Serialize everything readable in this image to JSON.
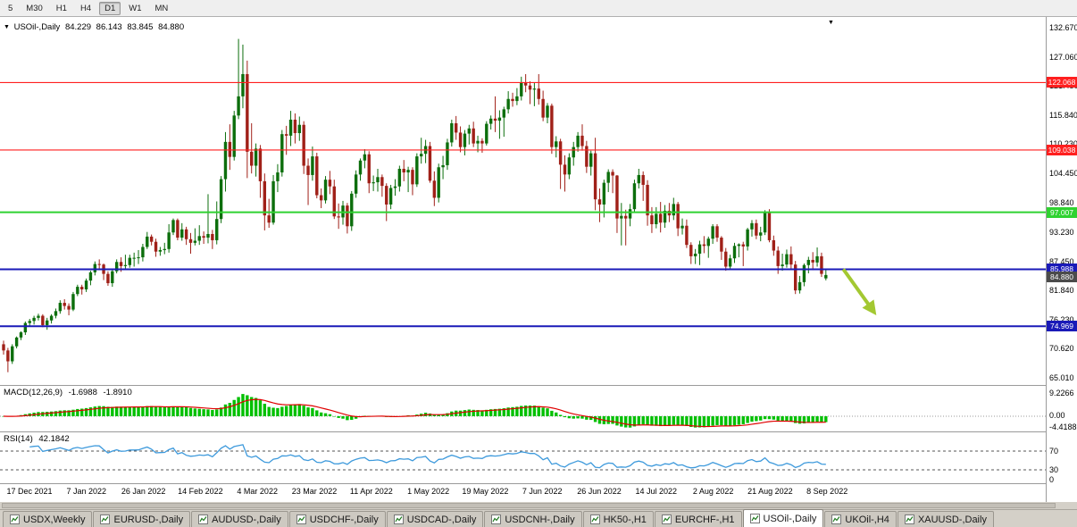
{
  "icons": {
    "dropdown": "▼",
    "shift_marker": "▼"
  },
  "colors": {
    "bull": "#0c6e0c",
    "bear": "#a02018",
    "macd_hist": "#00c000",
    "macd_signal": "#e00000",
    "rsi_line": "#3e9adc",
    "arrow": "#a3c832"
  },
  "toolbar": {
    "periods": [
      {
        "label": "5"
      },
      {
        "label": "M30"
      },
      {
        "label": "H1"
      },
      {
        "label": "H4"
      },
      {
        "label": "D1",
        "active": true
      },
      {
        "label": "W1"
      },
      {
        "label": "MN"
      }
    ]
  },
  "chart": {
    "header": {
      "symbol": "USOil-,Daily",
      "open": "84.229",
      "high": "86.143",
      "low": "83.845",
      "close": "84.880"
    }
  },
  "indicators": {
    "macd": {
      "name": "MACD(12,26,9)",
      "value_main": "-1.6988",
      "value_signal": "-1.8910",
      "fast": 12,
      "slow": 26,
      "signal": 9,
      "axis_labels": [
        "9.2266",
        "0.00",
        "-4.4188"
      ]
    },
    "rsi": {
      "name": "RSI(14)",
      "value": "42.1842",
      "period": 14,
      "levels": [
        70,
        30
      ],
      "axis_labels": [
        "70",
        "30",
        "0"
      ]
    }
  },
  "tabs": [
    {
      "label": "USDX,Weekly"
    },
    {
      "label": "EURUSD-,Daily"
    },
    {
      "label": "AUDUSD-,Daily"
    },
    {
      "label": "USDCHF-,Daily"
    },
    {
      "label": "USDCAD-,Daily"
    },
    {
      "label": "USDCNH-,Daily"
    },
    {
      "label": "HK50-,H1"
    },
    {
      "label": "EURCHF-,H1"
    },
    {
      "label": "USOil-,Daily",
      "active": true
    },
    {
      "label": "UKOil-,H4"
    },
    {
      "label": "XAUUSD-,Daily"
    }
  ],
  "chart_data": {
    "type": "candlestick",
    "title": "USOil-,Daily",
    "symbol": "USOil-",
    "timeframe": "Daily",
    "ylim": [
      65.01,
      132.67
    ],
    "y_tick_labels": [
      "132.670",
      "127.060",
      "121.450",
      "115.840",
      "110.230",
      "104.450",
      "98.840",
      "93.230",
      "87.450",
      "81.840",
      "76.230",
      "70.620",
      "65.010"
    ],
    "x_tick_labels": [
      "17 Dec 2021",
      "7 Jan 2022",
      "26 Jan 2022",
      "14 Feb 2022",
      "4 Mar 2022",
      "23 Mar 2022",
      "11 Apr 2022",
      "1 May 2022",
      "19 May 2022",
      "7 Jun 2022",
      "26 Jun 2022",
      "14 Jul 2022",
      "2 Aug 2022",
      "21 Aug 2022",
      "8 Sep 2022"
    ],
    "hlines": [
      {
        "price": 122.068,
        "label": "122.068",
        "color": "#ff1f1f",
        "width": 1.2
      },
      {
        "price": 109.038,
        "label": "109.038",
        "color": "#ff1f1f",
        "width": 1.2
      },
      {
        "price": 97.007,
        "label": "97.007",
        "color": "#2fd230",
        "width": 2
      },
      {
        "price": 85.988,
        "label": "85.988",
        "color": "#1a1ab8",
        "width": 2
      },
      {
        "price": 74.969,
        "label": "74.969",
        "color": "#1a1ab8",
        "width": 2
      }
    ],
    "current_price": {
      "price": 84.88,
      "label": "84.880",
      "color": "#4b4b4b"
    },
    "arrow_annotation": {
      "start": {
        "bar": 193,
        "price": 86.0
      },
      "end": {
        "bar": 200,
        "price": 77.8
      },
      "color": "#a3c832"
    },
    "candles": [
      [
        71.5,
        72.2,
        69.5,
        70.3
      ],
      [
        70.3,
        70.8,
        66.1,
        68.2
      ],
      [
        68.2,
        71.5,
        67.7,
        71.1
      ],
      [
        71.1,
        73.0,
        70.7,
        72.8
      ],
      [
        72.8,
        74.0,
        72.3,
        73.8
      ],
      [
        73.8,
        75.9,
        73.3,
        75.6
      ],
      [
        75.6,
        76.4,
        75.0,
        76.0
      ],
      [
        76.0,
        77.0,
        75.3,
        76.6
      ],
      [
        76.6,
        77.4,
        76.1,
        77.0
      ],
      [
        77.0,
        77.3,
        74.8,
        75.2
      ],
      [
        75.2,
        76.6,
        74.3,
        76.1
      ],
      [
        76.1,
        77.3,
        75.5,
        77.0
      ],
      [
        77.0,
        78.4,
        76.5,
        77.9
      ],
      [
        77.9,
        80.0,
        77.4,
        79.5
      ],
      [
        79.5,
        80.2,
        78.2,
        78.9
      ],
      [
        78.9,
        79.4,
        77.1,
        78.2
      ],
      [
        78.2,
        81.6,
        77.9,
        81.2
      ],
      [
        81.2,
        83.0,
        80.8,
        82.6
      ],
      [
        82.6,
        83.0,
        81.1,
        82.1
      ],
      [
        82.1,
        84.2,
        81.6,
        83.8
      ],
      [
        83.8,
        85.7,
        82.9,
        85.4
      ],
      [
        85.4,
        87.5,
        84.8,
        87.0
      ],
      [
        87.0,
        87.9,
        85.8,
        86.9
      ],
      [
        86.9,
        87.1,
        83.9,
        85.1
      ],
      [
        85.1,
        85.6,
        82.8,
        83.3
      ],
      [
        83.3,
        86.0,
        82.6,
        85.6
      ],
      [
        85.6,
        87.9,
        85.2,
        87.4
      ],
      [
        87.4,
        88.3,
        85.5,
        86.6
      ],
      [
        86.6,
        88.8,
        85.9,
        86.8
      ],
      [
        86.8,
        88.8,
        86.3,
        88.2
      ],
      [
        88.2,
        89.2,
        86.5,
        88.2
      ],
      [
        88.2,
        89.7,
        87.0,
        88.3
      ],
      [
        88.3,
        90.9,
        87.5,
        90.3
      ],
      [
        90.3,
        93.2,
        89.9,
        92.3
      ],
      [
        92.3,
        92.7,
        90.6,
        91.3
      ],
      [
        91.3,
        91.9,
        88.4,
        89.4
      ],
      [
        89.4,
        90.3,
        88.6,
        89.7
      ],
      [
        89.7,
        91.1,
        88.9,
        89.9
      ],
      [
        89.9,
        94.7,
        89.2,
        93.1
      ],
      [
        93.1,
        95.8,
        92.6,
        95.5
      ],
      [
        95.5,
        95.8,
        91.6,
        92.1
      ],
      [
        92.1,
        94.9,
        91.5,
        93.7
      ],
      [
        93.7,
        94.2,
        90.7,
        91.8
      ],
      [
        91.8,
        93.0,
        89.0,
        91.1
      ],
      [
        91.1,
        93.9,
        90.6,
        91.5
      ],
      [
        91.5,
        94.5,
        90.7,
        92.4
      ],
      [
        92.4,
        93.3,
        90.9,
        92.1
      ],
      [
        92.1,
        100.5,
        91.0,
        92.8
      ],
      [
        92.8,
        93.6,
        89.9,
        91.6
      ],
      [
        91.6,
        99.1,
        90.8,
        95.7
      ],
      [
        95.7,
        104.0,
        94.9,
        103.4
      ],
      [
        103.4,
        112.5,
        101.0,
        110.6
      ],
      [
        110.6,
        114.0,
        105.2,
        107.7
      ],
      [
        107.7,
        116.6,
        107.0,
        115.7
      ],
      [
        115.7,
        130.5,
        115.0,
        119.4
      ],
      [
        119.4,
        129.4,
        117.1,
        123.7
      ],
      [
        123.7,
        126.3,
        103.6,
        108.7
      ],
      [
        108.7,
        114.2,
        104.5,
        106.0
      ],
      [
        106.0,
        110.3,
        103.9,
        109.3
      ],
      [
        109.3,
        110.0,
        99.8,
        103.0
      ],
      [
        103.0,
        104.5,
        93.5,
        96.4
      ],
      [
        96.4,
        99.6,
        94.0,
        95.0
      ],
      [
        95.0,
        104.2,
        94.6,
        103.0
      ],
      [
        103.0,
        106.3,
        100.9,
        104.7
      ],
      [
        104.7,
        112.9,
        103.9,
        112.1
      ],
      [
        112.1,
        113.7,
        108.1,
        111.8
      ],
      [
        111.8,
        116.6,
        109.8,
        114.9
      ],
      [
        114.9,
        116.1,
        110.3,
        112.3
      ],
      [
        112.3,
        115.5,
        110.8,
        113.9
      ],
      [
        113.9,
        114.6,
        104.4,
        106.0
      ],
      [
        106.0,
        107.4,
        98.4,
        104.2
      ],
      [
        104.2,
        109.7,
        103.1,
        107.8
      ],
      [
        107.8,
        108.5,
        99.7,
        100.3
      ],
      [
        100.3,
        101.6,
        97.8,
        99.3
      ],
      [
        99.3,
        104.0,
        98.7,
        103.3
      ],
      [
        103.3,
        105.0,
        100.5,
        102.0
      ],
      [
        102.0,
        103.3,
        95.7,
        96.2
      ],
      [
        96.2,
        98.7,
        93.8,
        96.0
      ],
      [
        96.0,
        99.2,
        94.6,
        98.3
      ],
      [
        98.3,
        98.8,
        92.9,
        94.3
      ],
      [
        94.3,
        101.1,
        93.4,
        100.6
      ],
      [
        100.6,
        105.1,
        99.8,
        104.3
      ],
      [
        104.3,
        107.4,
        103.1,
        107.0
      ],
      [
        107.0,
        109.2,
        105.5,
        108.2
      ],
      [
        108.2,
        108.8,
        100.7,
        102.6
      ],
      [
        102.6,
        104.1,
        101.1,
        102.8
      ],
      [
        102.8,
        105.4,
        101.0,
        103.8
      ],
      [
        103.8,
        104.3,
        100.0,
        102.1
      ],
      [
        102.1,
        102.6,
        95.3,
        98.5
      ],
      [
        98.5,
        102.3,
        97.6,
        101.7
      ],
      [
        101.7,
        103.4,
        100.2,
        102.0
      ],
      [
        102.0,
        106.0,
        101.0,
        105.4
      ],
      [
        105.4,
        107.1,
        103.0,
        104.7
      ],
      [
        104.7,
        105.8,
        100.9,
        105.2
      ],
      [
        105.2,
        105.7,
        100.3,
        102.4
      ],
      [
        102.4,
        108.4,
        101.9,
        107.8
      ],
      [
        107.8,
        111.4,
        106.4,
        108.3
      ],
      [
        108.3,
        111.0,
        106.5,
        109.8
      ],
      [
        109.8,
        110.6,
        102.7,
        103.1
      ],
      [
        103.1,
        104.9,
        98.2,
        99.8
      ],
      [
        99.8,
        106.4,
        98.9,
        105.7
      ],
      [
        105.7,
        107.9,
        103.4,
        106.1
      ],
      [
        106.1,
        111.2,
        105.2,
        110.5
      ],
      [
        110.5,
        114.9,
        109.7,
        114.2
      ],
      [
        114.2,
        115.6,
        111.0,
        112.4
      ],
      [
        112.4,
        113.6,
        108.6,
        109.6
      ],
      [
        109.6,
        112.9,
        108.0,
        112.2
      ],
      [
        112.2,
        113.9,
        110.1,
        113.2
      ],
      [
        113.2,
        114.5,
        109.6,
        110.3
      ],
      [
        110.3,
        111.8,
        108.6,
        110.8
      ],
      [
        110.8,
        111.3,
        108.5,
        110.3
      ],
      [
        110.3,
        114.6,
        109.9,
        114.1
      ],
      [
        114.1,
        115.7,
        113.0,
        115.1
      ],
      [
        115.1,
        119.4,
        112.5,
        114.7
      ],
      [
        114.7,
        116.7,
        111.2,
        115.3
      ],
      [
        115.3,
        117.4,
        111.6,
        116.9
      ],
      [
        116.9,
        120.4,
        116.1,
        118.9
      ],
      [
        118.9,
        120.1,
        117.4,
        118.5
      ],
      [
        118.5,
        121.0,
        117.7,
        119.4
      ],
      [
        119.4,
        123.2,
        118.6,
        122.1
      ],
      [
        122.1,
        123.7,
        120.2,
        121.5
      ],
      [
        121.5,
        122.3,
        117.9,
        120.7
      ],
      [
        120.7,
        122.0,
        117.5,
        120.9
      ],
      [
        120.9,
        123.7,
        117.8,
        118.9
      ],
      [
        118.9,
        120.5,
        114.6,
        115.3
      ],
      [
        115.3,
        118.1,
        114.2,
        117.6
      ],
      [
        117.6,
        118.0,
        108.3,
        109.6
      ],
      [
        109.6,
        111.7,
        107.6,
        110.7
      ],
      [
        110.7,
        111.2,
        101.5,
        106.2
      ],
      [
        106.2,
        108.0,
        101.0,
        104.3
      ],
      [
        104.3,
        108.4,
        103.4,
        107.6
      ],
      [
        107.6,
        110.6,
        106.0,
        109.6
      ],
      [
        109.6,
        112.5,
        108.7,
        111.8
      ],
      [
        111.8,
        114.0,
        108.9,
        109.8
      ],
      [
        109.8,
        110.8,
        104.6,
        105.8
      ],
      [
        105.8,
        108.9,
        104.1,
        108.4
      ],
      [
        108.4,
        111.4,
        97.4,
        99.5
      ],
      [
        99.5,
        101.6,
        95.1,
        98.5
      ],
      [
        98.5,
        103.3,
        96.0,
        102.7
      ],
      [
        102.7,
        105.3,
        100.9,
        104.8
      ],
      [
        104.8,
        105.3,
        100.7,
        104.1
      ],
      [
        104.1,
        104.2,
        93.0,
        95.8
      ],
      [
        95.8,
        98.8,
        90.6,
        96.3
      ],
      [
        96.3,
        97.5,
        90.6,
        95.8
      ],
      [
        95.8,
        98.6,
        94.3,
        97.6
      ],
      [
        97.6,
        103.3,
        97.0,
        102.6
      ],
      [
        102.6,
        105.4,
        101.6,
        104.2
      ],
      [
        104.2,
        104.9,
        99.2,
        102.3
      ],
      [
        102.3,
        103.2,
        94.4,
        96.4
      ],
      [
        96.4,
        98.0,
        93.0,
        94.7
      ],
      [
        94.7,
        98.0,
        93.9,
        96.7
      ],
      [
        96.7,
        99.0,
        93.1,
        95.0
      ],
      [
        95.0,
        98.4,
        94.0,
        97.3
      ],
      [
        97.3,
        98.8,
        95.1,
        96.4
      ],
      [
        96.4,
        99.8,
        95.5,
        98.6
      ],
      [
        98.6,
        99.0,
        92.4,
        93.9
      ],
      [
        93.9,
        95.8,
        92.7,
        94.4
      ],
      [
        94.4,
        95.6,
        90.1,
        90.7
      ],
      [
        90.7,
        91.2,
        87.0,
        88.5
      ],
      [
        88.5,
        89.9,
        87.0,
        89.0
      ],
      [
        89.0,
        91.5,
        86.8,
        90.8
      ],
      [
        90.8,
        92.4,
        89.1,
        90.5
      ],
      [
        90.5,
        92.3,
        88.2,
        91.9
      ],
      [
        91.9,
        94.7,
        90.9,
        94.3
      ],
      [
        94.3,
        94.7,
        91.3,
        92.1
      ],
      [
        92.1,
        92.4,
        87.8,
        89.4
      ],
      [
        89.4,
        90.1,
        85.7,
        86.5
      ],
      [
        86.5,
        88.8,
        85.9,
        88.1
      ],
      [
        88.1,
        91.1,
        87.2,
        90.5
      ],
      [
        90.5,
        91.0,
        88.3,
        90.8
      ],
      [
        90.8,
        91.3,
        86.6,
        90.4
      ],
      [
        90.4,
        94.0,
        89.6,
        93.7
      ],
      [
        93.7,
        95.5,
        92.3,
        94.9
      ],
      [
        94.9,
        95.6,
        91.8,
        92.5
      ],
      [
        92.5,
        94.2,
        91.4,
        93.1
      ],
      [
        93.1,
        97.4,
        92.6,
        97.0
      ],
      [
        97.0,
        97.6,
        91.2,
        91.6
      ],
      [
        91.6,
        92.5,
        88.6,
        89.6
      ],
      [
        89.6,
        90.4,
        85.1,
        86.6
      ],
      [
        86.6,
        89.0,
        85.7,
        86.9
      ],
      [
        86.9,
        89.8,
        86.3,
        88.9
      ],
      [
        88.9,
        90.4,
        85.9,
        86.9
      ],
      [
        86.9,
        87.6,
        81.2,
        81.9
      ],
      [
        81.9,
        84.7,
        81.3,
        83.5
      ],
      [
        83.5,
        87.1,
        82.7,
        86.8
      ],
      [
        86.8,
        88.4,
        85.2,
        87.8
      ],
      [
        87.8,
        89.3,
        85.8,
        87.3
      ],
      [
        87.3,
        90.2,
        86.5,
        88.5
      ],
      [
        88.5,
        89.2,
        84.5,
        85.1
      ],
      [
        84.229,
        86.143,
        83.845,
        84.88
      ]
    ]
  }
}
